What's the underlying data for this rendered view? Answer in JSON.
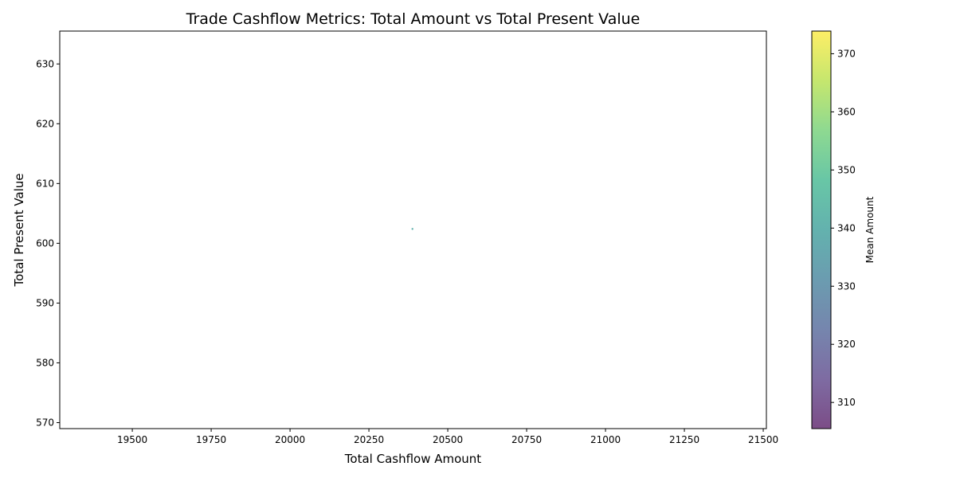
{
  "chart_data": {
    "type": "scatter",
    "title": "Trade Cashflow Metrics: Total Amount vs Total Present Value",
    "xlabel": "Total Cashflow Amount",
    "ylabel": "Total Present Value",
    "xlim": [
      19270,
      21510
    ],
    "ylim": [
      569,
      635.5
    ],
    "xticks": [
      "19500",
      "19750",
      "20000",
      "20250",
      "20500",
      "20750",
      "21000",
      "21250",
      "21500"
    ],
    "yticks": [
      "570",
      "580",
      "590",
      "600",
      "610",
      "620",
      "630"
    ],
    "grid": false,
    "points": [
      {
        "x": 20388,
        "y": 602.4,
        "color_value": 340
      }
    ],
    "colorbar": {
      "label": "Mean Amount",
      "colormap": "viridis",
      "alpha": 0.7,
      "range": [
        305.5,
        373.9
      ],
      "ticks": [
        "310",
        "320",
        "330",
        "340",
        "350",
        "360",
        "370"
      ]
    }
  }
}
